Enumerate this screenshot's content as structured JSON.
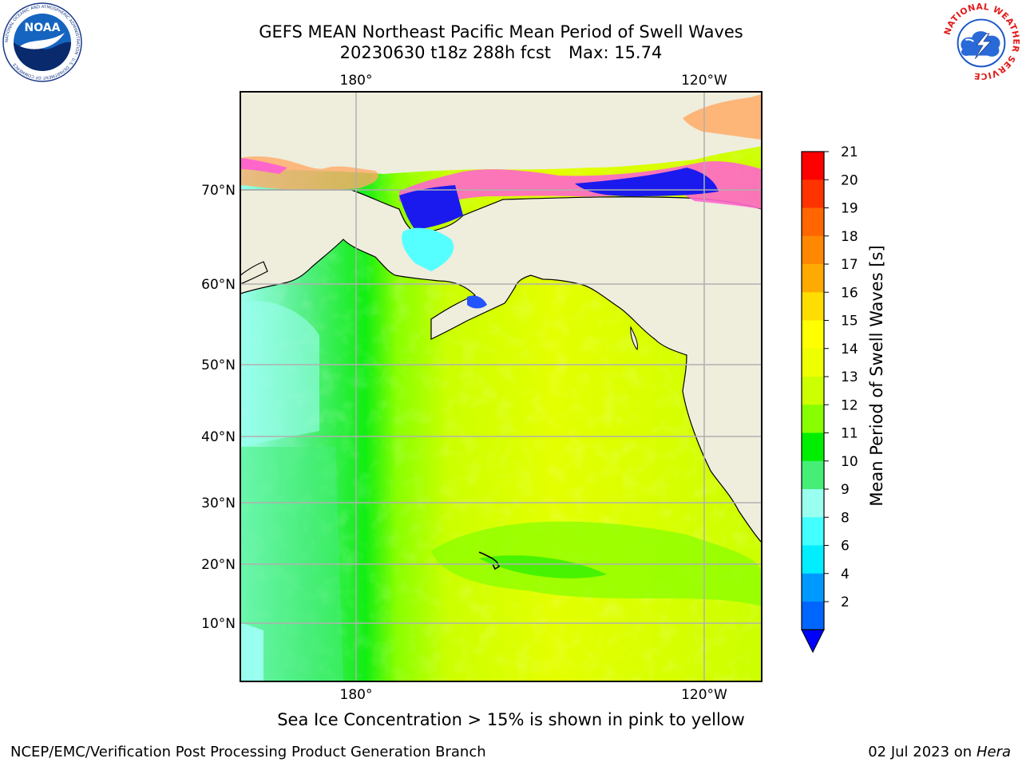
{
  "header": {
    "title": "GEFS MEAN Northeast Pacific Mean Period of Swell Waves",
    "subtitle_run": "20230630 t18z 288h fcst",
    "subtitle_max": "Max: 15.74"
  },
  "logos": {
    "noaa": {
      "center_text": "NOAA",
      "ring_text": "NATIONAL OCEANIC AND ATMOSPHERIC ADMINISTRATION · U.S. DEPARTMENT OF COMMERCE"
    },
    "nws": {
      "ring_text": "NATIONAL WEATHER SERVICE"
    }
  },
  "map": {
    "top_lon_labels": [
      "180°",
      "120°W"
    ],
    "bottom_lon_labels": [
      "180°",
      "120°W"
    ],
    "lat_labels": [
      "70°N",
      "60°N",
      "50°N",
      "40°N",
      "30°N",
      "20°N",
      "10°N"
    ],
    "colors": {
      "land": "#efeddc",
      "ocean_base": "#ccff00",
      "grid": "#b0b0b0",
      "sea_ice_pink": "#ff66cc",
      "sea_ice_orange": "#ffaa66"
    }
  },
  "colorbar": {
    "label": "Mean Period of Swell Waves [s]",
    "ticks": [
      "21",
      "20",
      "19",
      "18",
      "17",
      "16",
      "15",
      "14",
      "13",
      "12",
      "11",
      "10",
      "9",
      "8",
      "6",
      "4",
      "2"
    ],
    "colors": [
      "#ff0000",
      "#ff3300",
      "#ff6600",
      "#ff8800",
      "#ffaa00",
      "#ffdd00",
      "#ffff00",
      "#eeff00",
      "#ccff00",
      "#88ff00",
      "#00ee00",
      "#44ee77",
      "#99ffee",
      "#44ffff",
      "#00eeff",
      "#0099ff",
      "#0066ff"
    ],
    "under_color": "#0000ff"
  },
  "caption": "Sea Ice Concentration > 15% is shown in pink to yellow",
  "footer": {
    "left": "NCEP/EMC/Verification Post Processing Product Generation Branch",
    "right_date": "02 Jul 2023 on",
    "right_host": "Hera"
  }
}
